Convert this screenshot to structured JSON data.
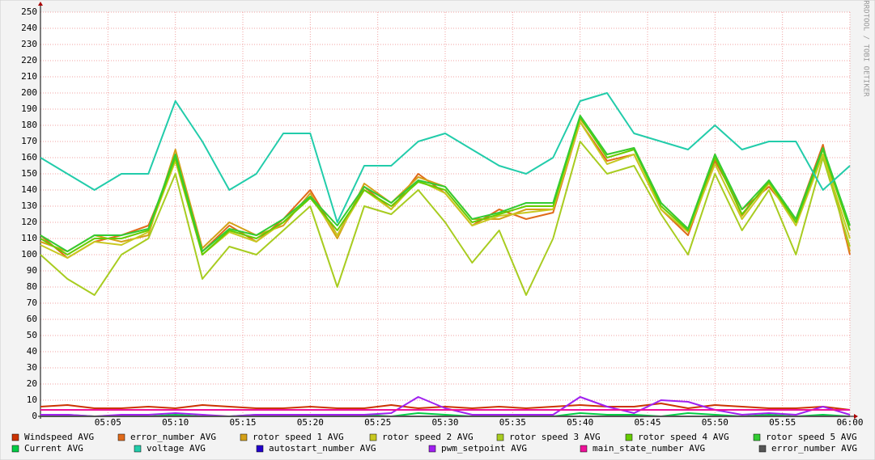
{
  "chart_data": {
    "type": "line",
    "watermark": "RRDTOOL / TOBI OETIKER",
    "x": [
      "05:00",
      "05:02",
      "05:04",
      "05:06",
      "05:08",
      "05:10",
      "05:12",
      "05:14",
      "05:16",
      "05:18",
      "05:20",
      "05:22",
      "05:24",
      "05:26",
      "05:28",
      "05:30",
      "05:32",
      "05:34",
      "05:36",
      "05:38",
      "05:40",
      "05:42",
      "05:44",
      "05:46",
      "05:48",
      "05:50",
      "05:52",
      "05:54",
      "05:56",
      "05:58",
      "06:00"
    ],
    "xlim": [
      "05:00",
      "06:00"
    ],
    "xticks": [
      "05:05",
      "05:10",
      "05:15",
      "05:20",
      "05:25",
      "05:30",
      "05:35",
      "05:40",
      "05:45",
      "05:50",
      "05:55",
      "06:00"
    ],
    "ylim": [
      0,
      250
    ],
    "yticks": [
      0,
      10,
      20,
      30,
      40,
      50,
      60,
      70,
      80,
      90,
      100,
      110,
      120,
      130,
      140,
      150,
      160,
      170,
      180,
      190,
      200,
      210,
      220,
      230,
      240,
      250
    ],
    "grid": true,
    "series": [
      {
        "name": "Windspeed AVG",
        "color": "#cc3300",
        "values": [
          6,
          7,
          5,
          5,
          6,
          5,
          7,
          6,
          5,
          5,
          6,
          5,
          5,
          7,
          5,
          6,
          5,
          6,
          5,
          6,
          7,
          6,
          6,
          8,
          5,
          7,
          6,
          5,
          5,
          6,
          4
        ]
      },
      {
        "name": "error_number AVG",
        "color": "#e06a1a",
        "values": [
          112,
          98,
          108,
          112,
          118,
          158,
          102,
          118,
          108,
          122,
          140,
          112,
          142,
          128,
          150,
          138,
          118,
          128,
          122,
          126,
          182,
          158,
          162,
          128,
          112,
          158,
          128,
          142,
          122,
          168,
          100
        ]
      },
      {
        "name": "rotor speed 1 AVG",
        "color": "#d4a017",
        "values": [
          108,
          102,
          112,
          108,
          112,
          165,
          104,
          120,
          112,
          118,
          138,
          110,
          144,
          132,
          148,
          142,
          122,
          122,
          128,
          128,
          184,
          162,
          166,
          132,
          116,
          162,
          124,
          146,
          120,
          166,
          102
        ]
      },
      {
        "name": "rotor speed 2 AVG",
        "color": "#c8c820",
        "values": [
          106,
          98,
          108,
          106,
          114,
          158,
          100,
          114,
          108,
          120,
          136,
          112,
          140,
          128,
          146,
          138,
          118,
          124,
          126,
          128,
          182,
          156,
          162,
          128,
          114,
          156,
          122,
          144,
          118,
          162,
          110
        ]
      },
      {
        "name": "rotor speed 3 AVG",
        "color": "#a8cc20",
        "values": [
          100,
          85,
          75,
          100,
          110,
          150,
          85,
          105,
          100,
          115,
          130,
          80,
          130,
          125,
          140,
          120,
          95,
          115,
          75,
          110,
          170,
          150,
          155,
          125,
          100,
          150,
          115,
          140,
          100,
          160,
          105
        ]
      },
      {
        "name": "rotor speed 4 AVG",
        "color": "#66cc00",
        "values": [
          110,
          100,
          110,
          110,
          115,
          160,
          100,
          115,
          110,
          120,
          135,
          115,
          140,
          130,
          145,
          140,
          120,
          125,
          130,
          130,
          185,
          160,
          165,
          130,
          115,
          160,
          125,
          145,
          120,
          165,
          115
        ]
      },
      {
        "name": "rotor speed 5 AVG",
        "color": "#33cc33",
        "values": [
          112,
          102,
          112,
          112,
          116,
          162,
          102,
          116,
          112,
          122,
          136,
          118,
          142,
          132,
          146,
          142,
          122,
          126,
          132,
          132,
          186,
          162,
          166,
          132,
          116,
          162,
          128,
          146,
          122,
          166,
          118
        ]
      },
      {
        "name": "Current AVG",
        "color": "#00cc44",
        "values": [
          0,
          1,
          0,
          0,
          0,
          1,
          0,
          0,
          1,
          0,
          0,
          0,
          1,
          0,
          2,
          1,
          0,
          0,
          1,
          0,
          2,
          1,
          1,
          0,
          2,
          1,
          0,
          1,
          0,
          1,
          0
        ]
      },
      {
        "name": "voltage AVG",
        "color": "#22ccaa",
        "values": [
          160,
          150,
          140,
          150,
          150,
          195,
          170,
          140,
          150,
          175,
          175,
          120,
          155,
          155,
          170,
          175,
          165,
          155,
          150,
          160,
          195,
          200,
          175,
          170,
          165,
          180,
          165,
          170,
          170,
          140,
          155
        ]
      },
      {
        "name": "autostart_number AVG",
        "color": "#2200cc",
        "values": [
          0,
          0,
          0,
          0,
          0,
          0,
          0,
          0,
          0,
          0,
          0,
          0,
          0,
          0,
          0,
          0,
          0,
          0,
          0,
          0,
          0,
          0,
          0,
          0,
          0,
          0,
          0,
          0,
          0,
          0,
          0
        ]
      },
      {
        "name": "pwm_setpoint AVG",
        "color": "#a020f0",
        "values": [
          1,
          1,
          0,
          1,
          1,
          2,
          1,
          0,
          1,
          1,
          1,
          1,
          1,
          2,
          12,
          5,
          1,
          1,
          1,
          1,
          12,
          6,
          2,
          10,
          9,
          4,
          1,
          2,
          1,
          6,
          1
        ]
      },
      {
        "name": "main_state_number AVG",
        "color": "#ee1199",
        "values": [
          4,
          4,
          4,
          4,
          4,
          4,
          4,
          4,
          4,
          4,
          4,
          4,
          4,
          4,
          4,
          4,
          4,
          4,
          4,
          4,
          4,
          4,
          4,
          4,
          4,
          4,
          4,
          4,
          4,
          4,
          4
        ]
      },
      {
        "name": "error_number AVG",
        "color": "#555555",
        "values": [
          0,
          0,
          0,
          0,
          0,
          0,
          0,
          0,
          0,
          0,
          0,
          0,
          0,
          0,
          0,
          0,
          0,
          0,
          0,
          0,
          0,
          0,
          0,
          0,
          0,
          0,
          0,
          0,
          0,
          0,
          0
        ]
      }
    ]
  }
}
